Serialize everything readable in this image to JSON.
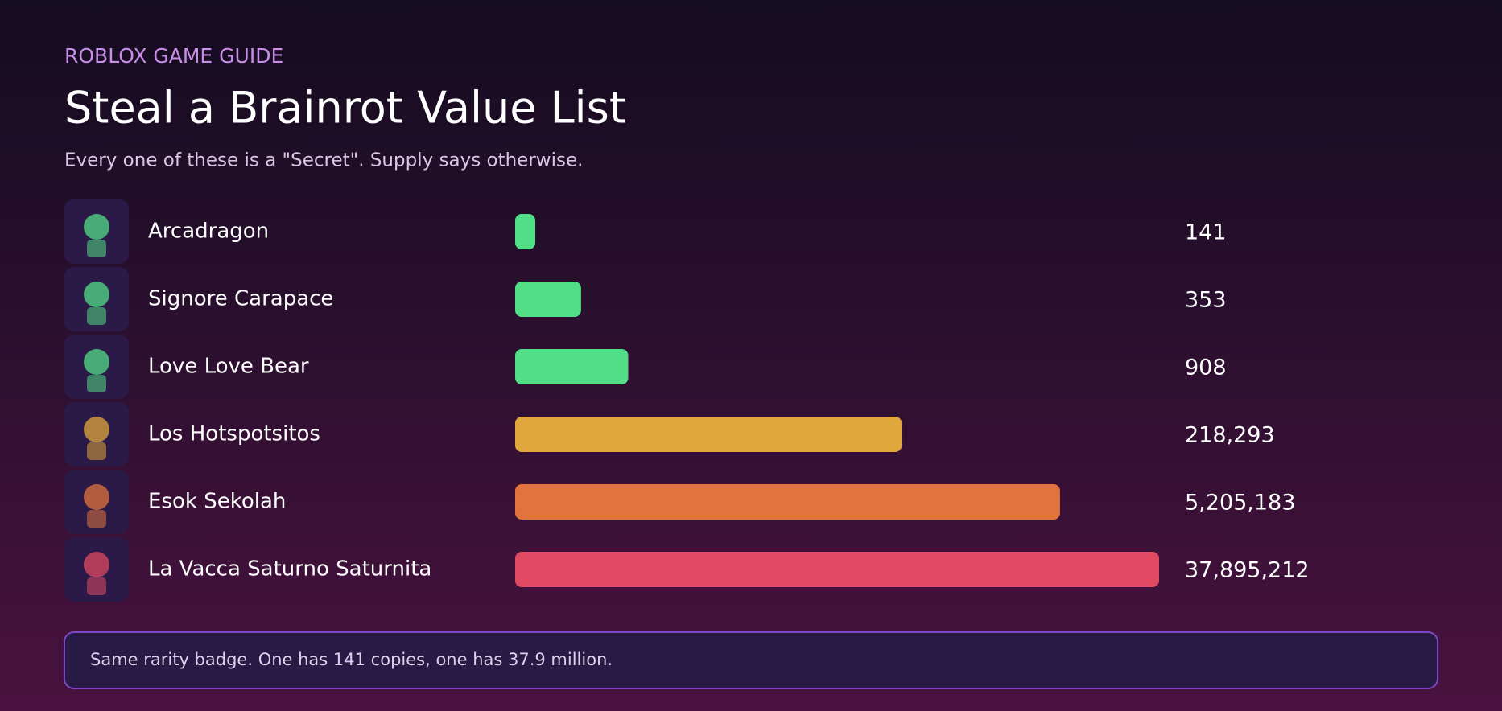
{
  "header": {
    "eyebrow": "ROBLOX GAME GUIDE",
    "title": "Steal a Brainrot Value List",
    "subtitle": "Every one of these is a \"Secret\". Supply says otherwise."
  },
  "chart_data": {
    "type": "bar",
    "orientation": "horizontal",
    "scale": "log",
    "categories": [
      "Arcadragon",
      "Signore Carapace",
      "Love Love Bear",
      "Los Hotspotsitos",
      "Esok Sekolah",
      "La Vacca Saturno Saturnita"
    ],
    "values": [
      141,
      353,
      908,
      218293,
      5205183,
      37895212
    ],
    "value_labels": [
      "141",
      "353",
      "908",
      "218,293",
      "5,205,183",
      "37,895,212"
    ],
    "colors": [
      "#52de87",
      "#52de87",
      "#52de87",
      "#e0a83c",
      "#e0743c",
      "#e04a62"
    ]
  },
  "note": "Same rarity badge. One has 141 copies, one has 37.9 million."
}
